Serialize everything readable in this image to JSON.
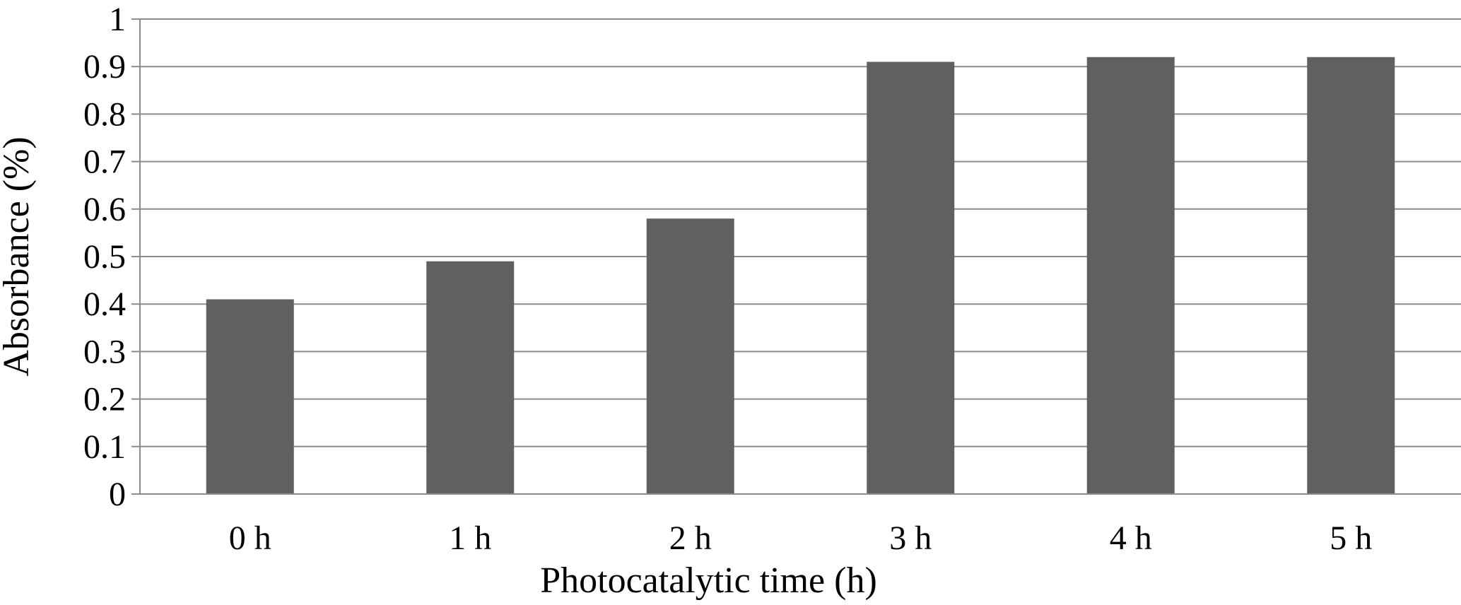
{
  "chart_data": {
    "type": "bar",
    "title": "",
    "xlabel": "Photocatalytic time (h)",
    "ylabel": "Absorbance (%)",
    "categories": [
      "0 h",
      "1 h",
      "2 h",
      "3 h",
      "4 h",
      "5 h"
    ],
    "values": [
      0.41,
      0.49,
      0.58,
      0.91,
      0.92,
      0.92
    ],
    "ylim": [
      0,
      1
    ],
    "yticks": [
      "0",
      "0.1",
      "0.2",
      "0.3",
      "0.4",
      "0.5",
      "0.6",
      "0.7",
      "0.8",
      "0.9",
      "1"
    ],
    "grid": true,
    "legend": "none",
    "colors": {
      "bar": "#606060",
      "grid": "#8c8c8c",
      "axis": "#8c8c8c"
    }
  }
}
